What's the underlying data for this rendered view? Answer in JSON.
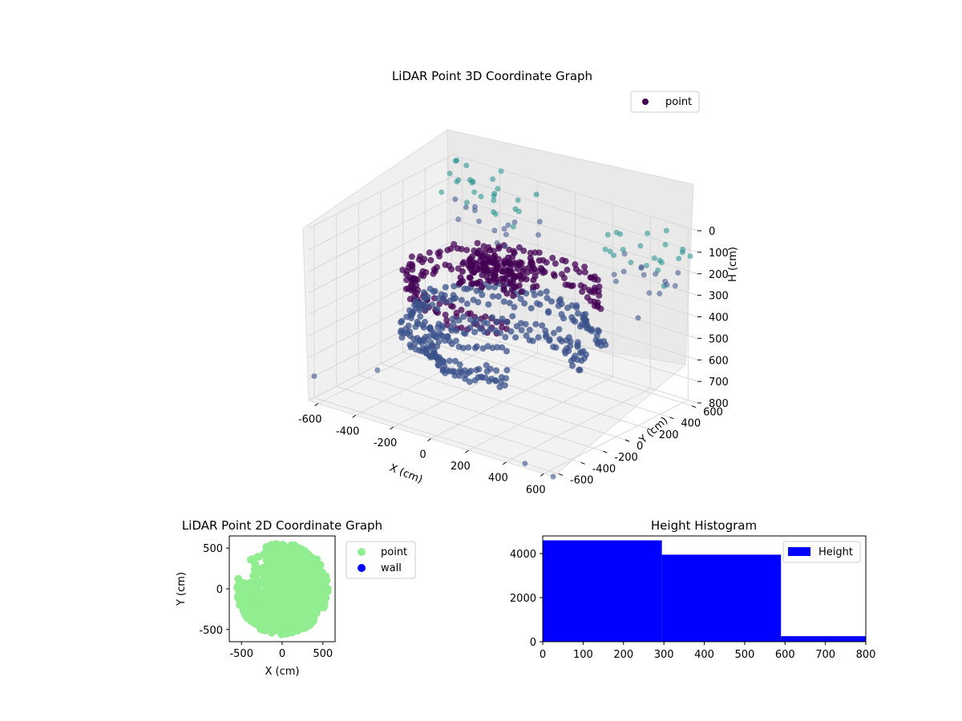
{
  "chart_data": [
    {
      "type": "scatter",
      "projection": "3d",
      "title": "LiDAR Point 3D Coordinate Graph",
      "xlabel": "X (cm)",
      "ylabel": "Y (cm)",
      "zlabel": "H (cm)",
      "xlim": [
        -650,
        650
      ],
      "ylim": [
        -650,
        650
      ],
      "zlim": [
        800,
        0
      ],
      "z_inverted": true,
      "xticks": [
        -600,
        -400,
        -200,
        0,
        200,
        400,
        600
      ],
      "yticks": [
        -600,
        -400,
        -200,
        0,
        200,
        400,
        600
      ],
      "zticks": [
        0,
        100,
        200,
        300,
        400,
        500,
        600,
        700,
        800
      ],
      "grid": true,
      "legend": {
        "position": "top-right",
        "entries": [
          "point"
        ]
      },
      "series_name": "point",
      "colormap": [
        "#440154",
        "#3b528b",
        "#21918c",
        "#5ec962"
      ],
      "description_of_points": "clustered rings of points at heights ~200-600 cm forming a cylindrical scan",
      "rings": [
        {
          "radius": 500,
          "height": 250,
          "count": 90
        },
        {
          "radius": 480,
          "height": 320,
          "count": 90
        },
        {
          "radius": 460,
          "height": 420,
          "count": 90
        },
        {
          "radius": 520,
          "height": 500,
          "count": 90
        },
        {
          "radius": 420,
          "height": 560,
          "count": 80
        },
        {
          "radius": 380,
          "height": 600,
          "count": 70
        }
      ],
      "outer_points": [
        {
          "x": -600,
          "y": 600,
          "h": 0
        },
        {
          "x": -500,
          "y": 550,
          "h": 50
        },
        {
          "x": -400,
          "y": 600,
          "h": 100
        },
        {
          "x": -300,
          "y": 620,
          "h": 150
        },
        {
          "x": -200,
          "y": 640,
          "h": 60
        },
        {
          "x": 600,
          "y": 600,
          "h": 100
        },
        {
          "x": 620,
          "y": 400,
          "h": 200
        },
        {
          "x": 600,
          "y": 200,
          "h": 300
        },
        {
          "x": -650,
          "y": -600,
          "h": 700
        },
        {
          "x": 650,
          "y": -650,
          "h": 800
        },
        {
          "x": 500,
          "y": -650,
          "h": 780
        },
        {
          "x": -550,
          "y": -200,
          "h": 750
        }
      ]
    },
    {
      "type": "scatter",
      "title": "LiDAR Point 2D Coordinate Graph",
      "xlabel": "X (cm)",
      "ylabel": "Y (cm)",
      "xlim": [
        -650,
        650
      ],
      "ylim": [
        -650,
        650
      ],
      "xticks": [
        -500,
        0,
        500
      ],
      "yticks": [
        -500,
        0,
        500
      ],
      "legend": {
        "position": "outside-right",
        "entries": [
          {
            "name": "point",
            "color": "#90ee90"
          },
          {
            "name": "wall",
            "color": "#0000ff"
          }
        ]
      },
      "series": [
        {
          "name": "point",
          "color": "#90ee90"
        },
        {
          "name": "wall",
          "color": "#0000ff"
        }
      ]
    },
    {
      "type": "bar",
      "histogram": true,
      "title": "Height Histogram",
      "xlim": [
        0,
        800
      ],
      "ylim": [
        0,
        4800
      ],
      "xticks": [
        0,
        100,
        200,
        300,
        400,
        500,
        600,
        700,
        800
      ],
      "yticks": [
        0,
        2000,
        4000
      ],
      "legend": {
        "position": "top-right",
        "entries": [
          "Height"
        ]
      },
      "color": "#0000ff",
      "bins": [
        {
          "start": 0,
          "end": 295,
          "count": 4600
        },
        {
          "start": 295,
          "end": 590,
          "count": 3950
        },
        {
          "start": 590,
          "end": 800,
          "count": 250
        }
      ]
    }
  ]
}
